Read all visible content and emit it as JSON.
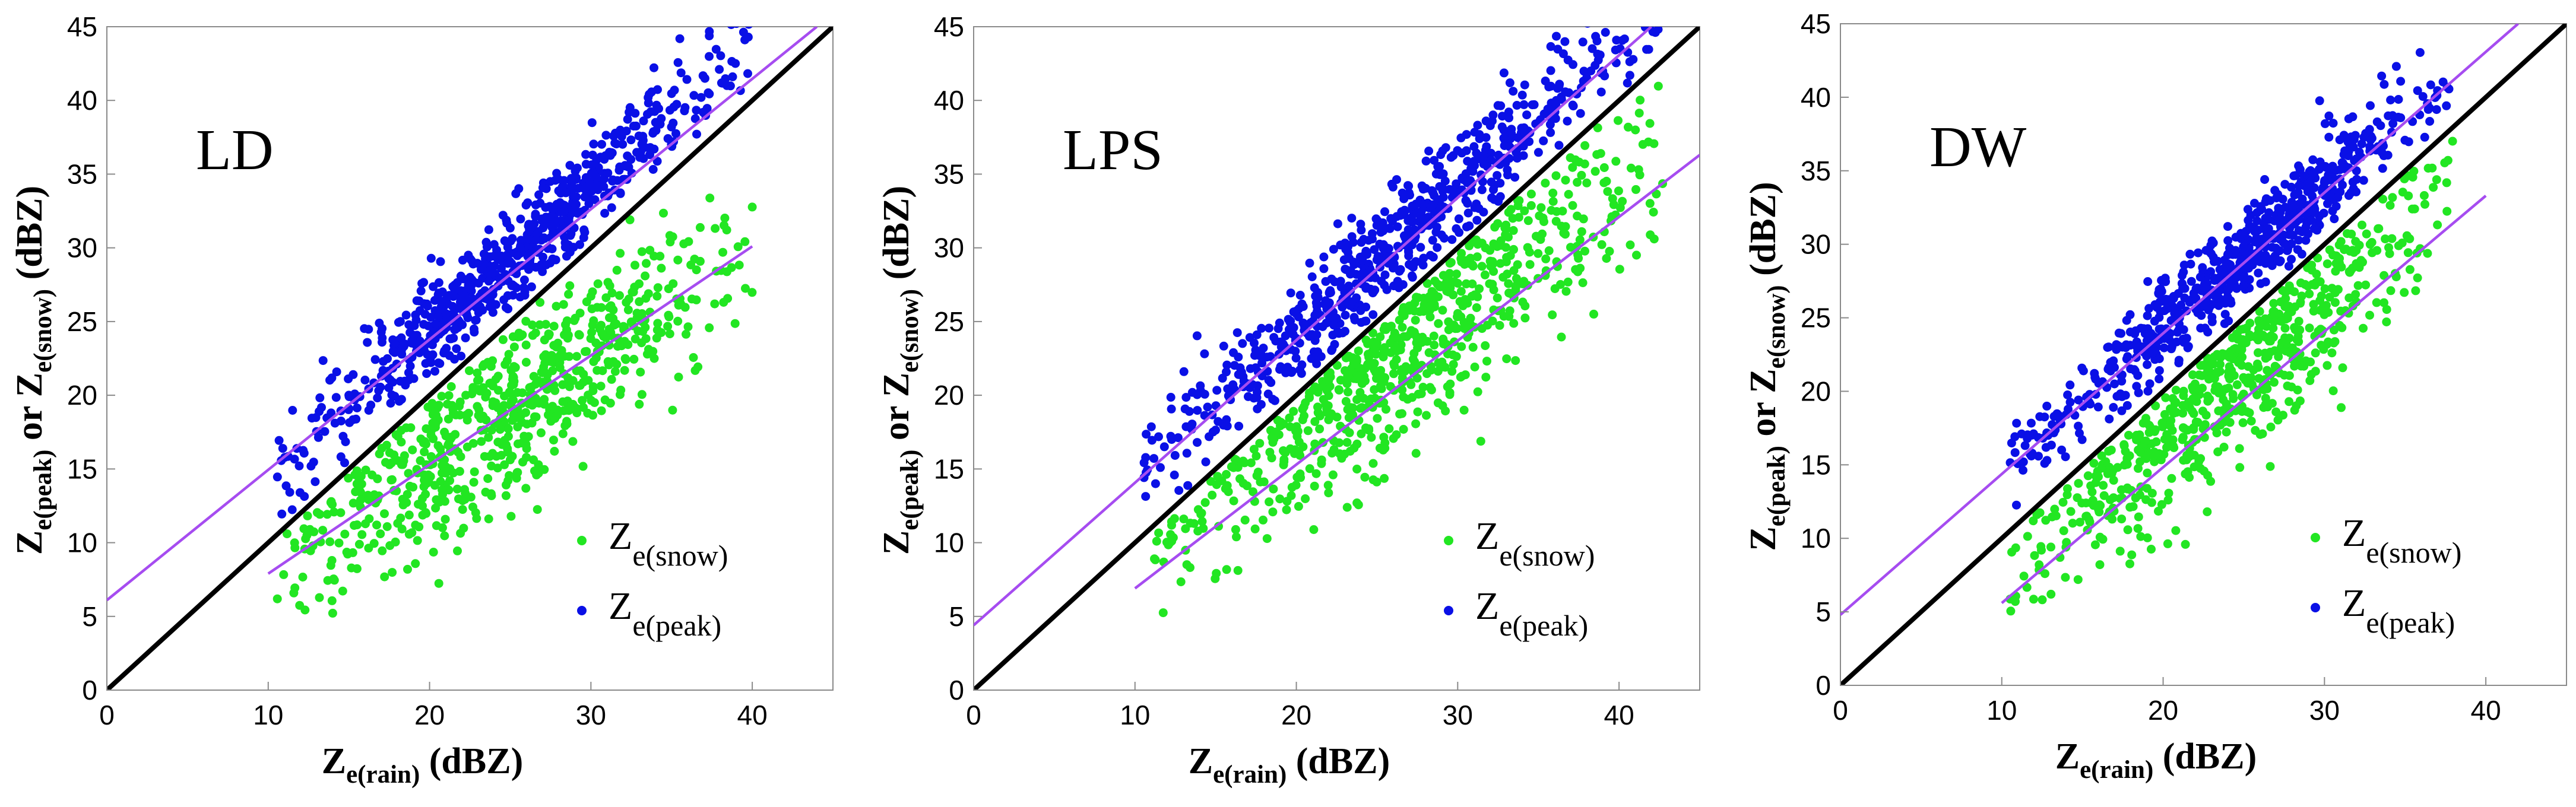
{
  "chart_data": [
    {
      "type": "scatter",
      "panel_label": "LD",
      "xlabel": {
        "main": "Z",
        "sub": "e(rain)",
        "unit": "(dBZ)"
      },
      "ylabel": {
        "main1": "Z",
        "sub1": "e(peak)",
        "mid": "or",
        "main2": "Z",
        "sub2": "e(snow)",
        "unit": "(dBZ)"
      },
      "xlim": [
        0,
        45
      ],
      "ylim": [
        0,
        45
      ],
      "xticks": [
        "0",
        "10",
        "20",
        "30",
        "40"
      ],
      "yticks": [
        "0",
        "5",
        "10",
        "15",
        "20",
        "25",
        "30",
        "35",
        "40",
        "45"
      ],
      "one_to_one_line": {
        "x": [
          0,
          45
        ],
        "y": [
          0,
          45
        ],
        "color": "#000000"
      },
      "fit_lines": [
        {
          "name": "peak fit",
          "x": [
            0,
            44
          ],
          "y": [
            6.1,
            45
          ],
          "color": "#a64cf0"
        },
        {
          "name": "snow fit",
          "x": [
            10,
            40
          ],
          "y": [
            7.9,
            30.1
          ],
          "color": "#a64cf0"
        }
      ],
      "series": [
        {
          "name": "Ze(peak)",
          "color": "#0a10e6",
          "cluster": {
            "x_range": [
              10.5,
              40
            ],
            "offset": 4.8,
            "slope": 0.98,
            "spread": 1.7
          },
          "n": 700
        },
        {
          "name": "Ze(snow)",
          "color": "#22e622",
          "cluster": {
            "x_range": [
              10.5,
              40
            ],
            "a": 0.74,
            "b": 0.5,
            "spread": 2.8
          },
          "n": 700
        }
      ],
      "legend": [
        {
          "main": "Z",
          "sub": "e(snow)",
          "color": "#22e622"
        },
        {
          "main": "Z",
          "sub": "e(peak)",
          "color": "#0a10e6"
        }
      ]
    },
    {
      "type": "scatter",
      "panel_label": "LPS",
      "xlabel": {
        "main": "Z",
        "sub": "e(rain)",
        "unit": "(dBZ)"
      },
      "ylabel": {
        "main1": "Z",
        "sub1": "e(peak)",
        "mid": "or",
        "main2": "Z",
        "sub2": "e(snow)",
        "unit": "(dBZ)"
      },
      "xlim": [
        0,
        45
      ],
      "ylim": [
        0,
        45
      ],
      "xticks": [
        "0",
        "10",
        "20",
        "30",
        "40"
      ],
      "yticks": [
        "0",
        "5",
        "10",
        "15",
        "20",
        "25",
        "30",
        "35",
        "40",
        "45"
      ],
      "one_to_one_line": {
        "x": [
          0,
          45
        ],
        "y": [
          0,
          45
        ],
        "color": "#000000"
      },
      "fit_lines": [
        {
          "name": "peak fit",
          "x": [
            0,
            42
          ],
          "y": [
            4.4,
            45
          ],
          "color": "#a64cf0"
        },
        {
          "name": "snow fit",
          "x": [
            10,
            45
          ],
          "y": [
            6.9,
            36.3
          ],
          "color": "#a64cf0"
        }
      ],
      "series": [
        {
          "name": "Ze(peak)",
          "color": "#0a10e6",
          "cluster": {
            "x_range": [
              10.5,
              43
            ],
            "offset": 4.2,
            "slope": 1.0,
            "spread": 1.8
          },
          "n": 700
        },
        {
          "name": "Ze(snow)",
          "color": "#22e622",
          "cluster": {
            "x_range": [
              11,
              43
            ],
            "a": 0.84,
            "b": 0.6,
            "spread": 3.2
          },
          "n": 700
        }
      ],
      "legend": [
        {
          "main": "Z",
          "sub": "e(snow)",
          "color": "#22e622"
        },
        {
          "main": "Z",
          "sub": "e(peak)",
          "color": "#0a10e6"
        }
      ]
    },
    {
      "type": "scatter",
      "panel_label": "DW",
      "xlabel": {
        "main": "Z",
        "sub": "e(rain)",
        "unit": "(dBZ)"
      },
      "ylabel": {
        "main1": "Z",
        "sub1": "e(peak)",
        "mid": "or",
        "main2": "Z",
        "sub2": "e(snow)",
        "unit": "(dBZ)"
      },
      "xlim": [
        0,
        45
      ],
      "ylim": [
        0,
        45
      ],
      "xticks": [
        "0",
        "10",
        "20",
        "30",
        "40"
      ],
      "yticks": [
        "0",
        "5",
        "10",
        "15",
        "20",
        "25",
        "30",
        "35",
        "40",
        "45"
      ],
      "one_to_one_line": {
        "x": [
          0,
          45
        ],
        "y": [
          0,
          45
        ],
        "color": "#000000"
      },
      "fit_lines": [
        {
          "name": "peak fit",
          "x": [
            0,
            42
          ],
          "y": [
            4.8,
            45
          ],
          "color": "#a64cf0"
        },
        {
          "name": "snow fit",
          "x": [
            10,
            40
          ],
          "y": [
            5.6,
            33.3
          ],
          "color": "#a64cf0"
        }
      ],
      "series": [
        {
          "name": "Ze(peak)",
          "color": "#0a10e6",
          "cluster": {
            "x_range": [
              10.5,
              38
            ],
            "offset": 4.6,
            "slope": 0.98,
            "spread": 1.6
          },
          "n": 650
        },
        {
          "name": "Ze(snow)",
          "color": "#22e622",
          "cluster": {
            "x_range": [
              10.5,
              38
            ],
            "a": 0.92,
            "b": -1.5,
            "spread": 3.0
          },
          "n": 650
        }
      ],
      "legend": [
        {
          "main": "Z",
          "sub": "e(snow)",
          "color": "#22e622"
        },
        {
          "main": "Z",
          "sub": "e(peak)",
          "color": "#0a10e6"
        }
      ]
    }
  ]
}
